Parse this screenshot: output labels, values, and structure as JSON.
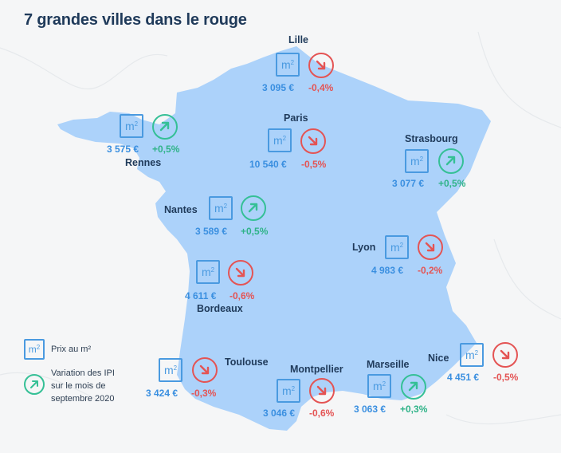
{
  "title": "7 grandes villes dans le rouge",
  "colors": {
    "map": "#acd2fa",
    "down": "#e45454",
    "up": "#35c096",
    "price": "#3a8fe0",
    "text": "#1f3a5a"
  },
  "icons": {
    "m2": "m2-square-icon",
    "up": "arrow-up-right-icon",
    "down": "arrow-down-right-icon"
  },
  "m2_label": "m",
  "cities": {
    "lille": {
      "name": "Lille",
      "price": "3 095 €",
      "variation": "-0,4%",
      "trend": "down"
    },
    "paris": {
      "name": "Paris",
      "price": "10 540 €",
      "variation": "-0,5%",
      "trend": "down"
    },
    "rennes": {
      "name": "Rennes",
      "price": "3 575 €",
      "variation": "+0,5%",
      "trend": "up"
    },
    "strasbourg": {
      "name": "Strasbourg",
      "price": "3 077 €",
      "variation": "+0,5%",
      "trend": "up"
    },
    "nantes": {
      "name": "Nantes",
      "price": "3 589 €",
      "variation": "+0,5%",
      "trend": "up"
    },
    "lyon": {
      "name": "Lyon",
      "price": "4 983 €",
      "variation": "-0,2%",
      "trend": "down"
    },
    "bordeaux": {
      "name": "Bordeaux",
      "price": "4 611 €",
      "variation": "-0,6%",
      "trend": "down"
    },
    "toulouse": {
      "name": "Toulouse",
      "price": "3 424 €",
      "variation": "-0,3%",
      "trend": "down"
    },
    "montpellier": {
      "name": "Montpellier",
      "price": "3 046 €",
      "variation": "-0,6%",
      "trend": "down"
    },
    "marseille": {
      "name": "Marseille",
      "price": "3 063 €",
      "variation": "+0,3%",
      "trend": "up"
    },
    "nice": {
      "name": "Nice",
      "price": "4 451 €",
      "variation": "-0,5%",
      "trend": "down"
    }
  },
  "legend": {
    "price_label": "Prix au m²",
    "variation_line1": "Variation des IPI",
    "variation_line2": "sur le mois de",
    "variation_line3": "septembre 2020"
  }
}
